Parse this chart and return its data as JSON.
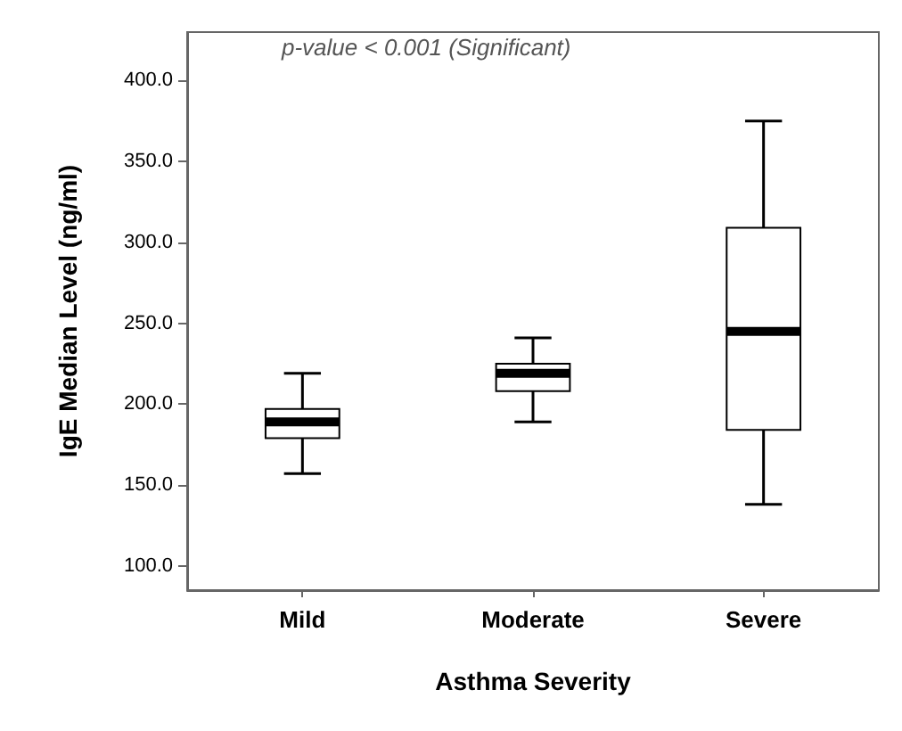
{
  "chart_data": {
    "type": "box",
    "xlabel": "Asthma Severity",
    "ylabel": "IgE Median Level (ng/ml)",
    "annotations": [
      "p-value < 0.001 (Significant)"
    ],
    "categories": [
      "Mild",
      "Moderate",
      "Severe"
    ],
    "boxes": [
      {
        "low": 157,
        "q1": 179,
        "median": 189,
        "q3": 197,
        "high": 219
      },
      {
        "low": 189,
        "q1": 208,
        "median": 219,
        "q3": 225,
        "high": 241
      },
      {
        "low": 138,
        "q1": 184,
        "median": 245,
        "q3": 309,
        "high": 375
      }
    ],
    "ylim": [
      85,
      430
    ],
    "yticks": [
      {
        "value": 100,
        "label": "100.0"
      },
      {
        "value": 150,
        "label": "150.0"
      },
      {
        "value": 200,
        "label": "200.0"
      },
      {
        "value": 250,
        "label": "250.0"
      },
      {
        "value": 300,
        "label": "300.0"
      },
      {
        "value": 350,
        "label": "350.0"
      },
      {
        "value": 400,
        "label": "400.0"
      }
    ],
    "grid": false
  }
}
